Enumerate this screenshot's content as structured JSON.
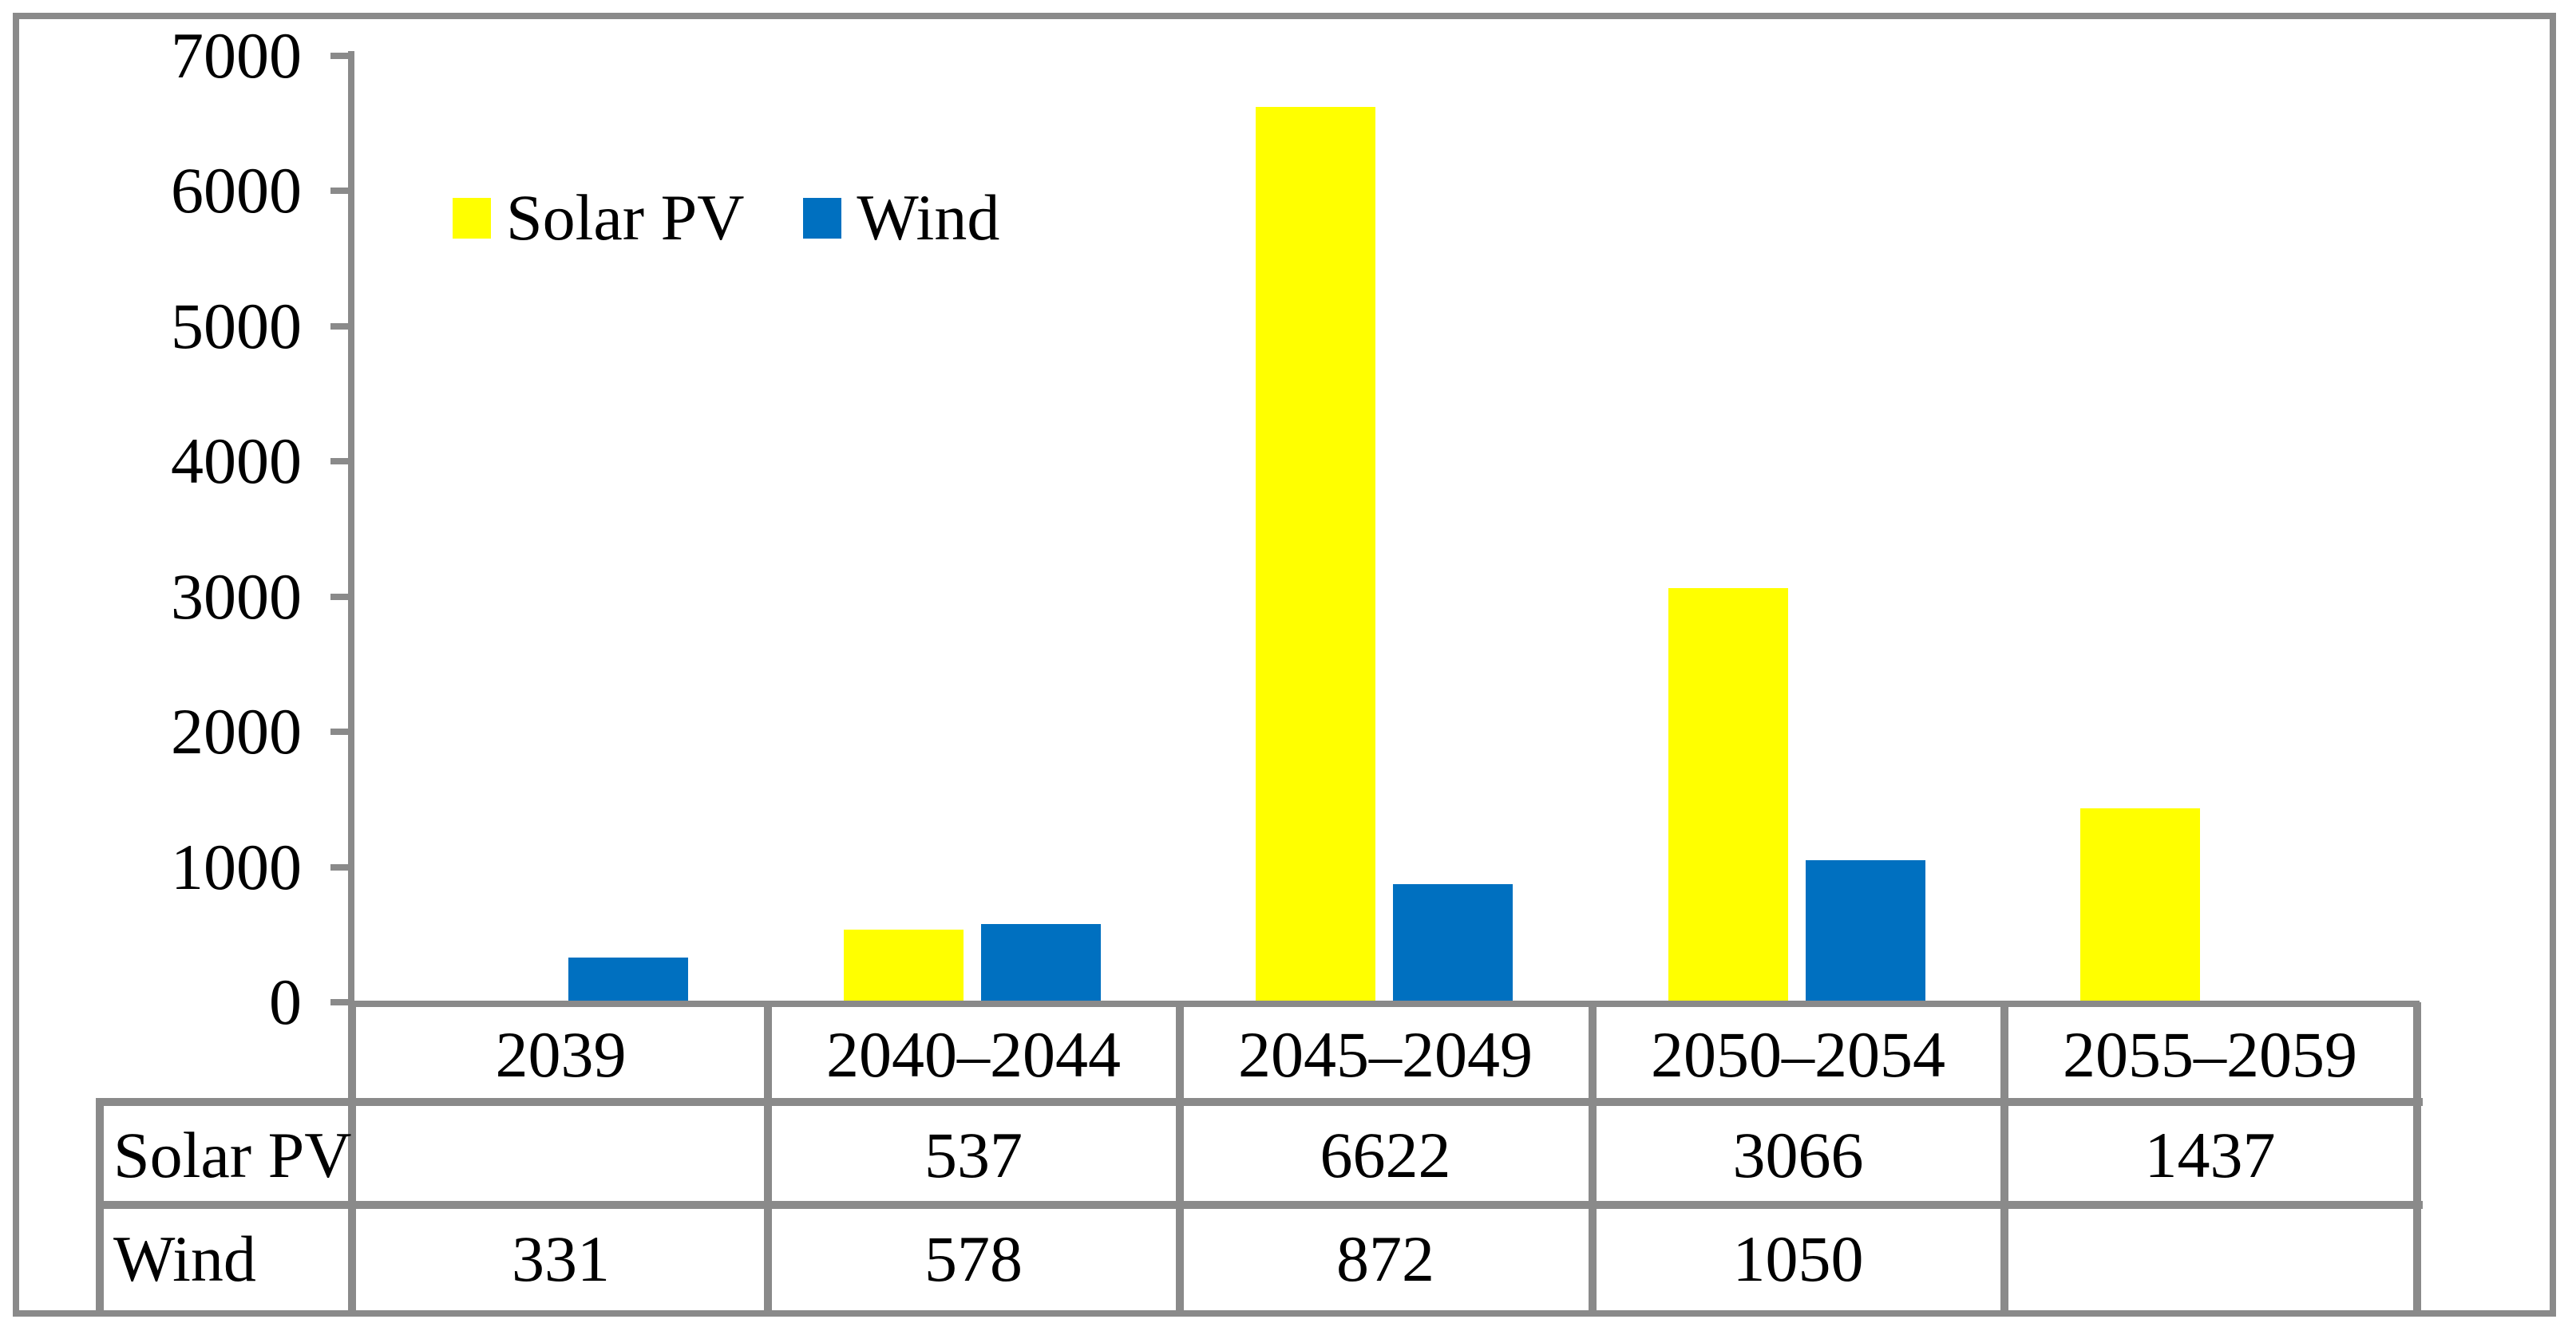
{
  "chart_data": {
    "type": "bar",
    "categories": [
      "2039",
      "2040–2044",
      "2045–2049",
      "2050–2054",
      "2055–2059"
    ],
    "series": [
      {
        "name": "Solar PV",
        "color": "#FFFF00",
        "values": [
          null,
          537,
          6622,
          3066,
          1437
        ]
      },
      {
        "name": "Wind",
        "color": "#0070C0",
        "values": [
          331,
          578,
          872,
          1050,
          null
        ]
      }
    ],
    "title": "",
    "xlabel": "",
    "ylabel": "",
    "ylim": [
      0,
      7000
    ],
    "yticks": [
      0,
      1000,
      2000,
      3000,
      4000,
      5000,
      6000,
      7000
    ],
    "grid": false,
    "legend_position": "top-left-inside",
    "data_table_shown": true
  },
  "legend": {
    "items": [
      {
        "label": "Solar PV",
        "color": "#FFFF00"
      },
      {
        "label": "Wind",
        "color": "#0070C0"
      }
    ]
  },
  "table": {
    "column_headers": [
      "2039",
      "2040–2044",
      "2045–2049",
      "2050–2054",
      "2055–2059"
    ],
    "rows": [
      {
        "label": "Solar PV",
        "cells": [
          "",
          "537",
          "6622",
          "3066",
          "1437"
        ]
      },
      {
        "label": "Wind",
        "cells": [
          "331",
          "578",
          "872",
          "1050",
          ""
        ]
      }
    ]
  },
  "colors": {
    "solar_pv": "#FFFF00",
    "wind": "#0070C0",
    "line_gray": "#8a8a8a",
    "background": "#FFFFFF",
    "text": "#000000"
  }
}
